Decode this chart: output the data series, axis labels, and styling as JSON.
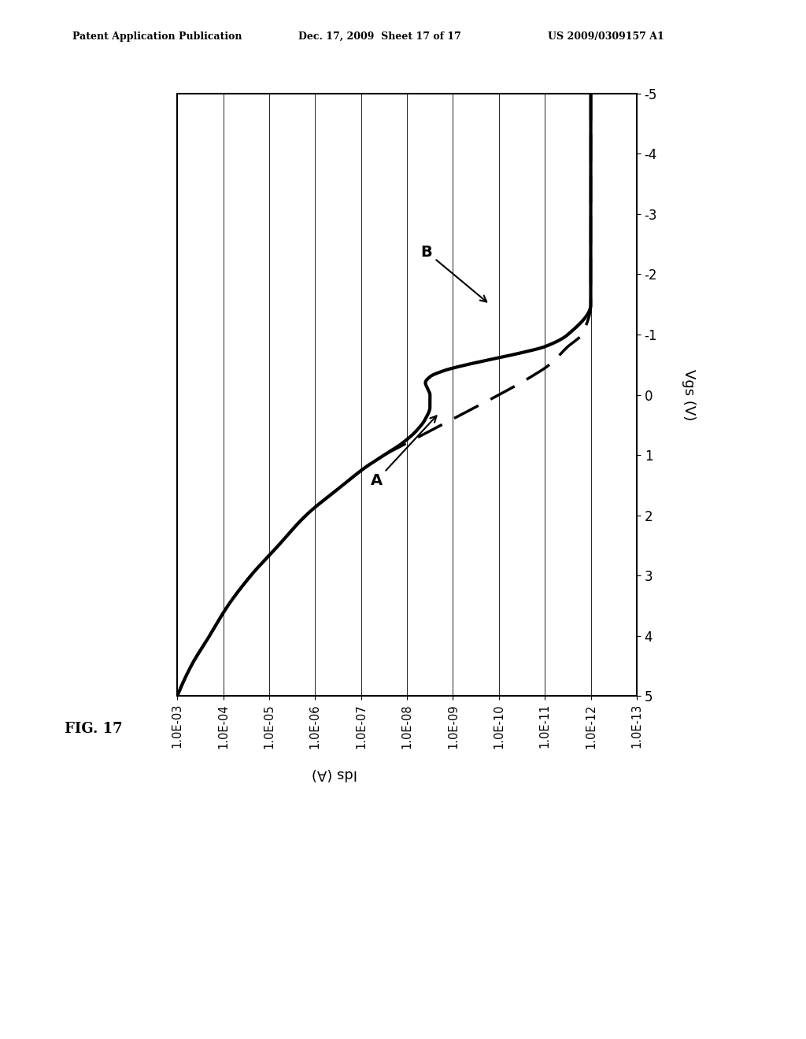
{
  "title": "",
  "fig_label": "FIG. 17",
  "header_left": "Patent Application Publication",
  "header_mid": "Dec. 17, 2009  Sheet 17 of 17",
  "header_right": "US 2009/0309157 A1",
  "xlabel": "Ids (A)",
  "ylabel": "Vgs (V)",
  "xtick_labels": [
    "1.0E-03",
    "1.0E-04",
    "1.0E-05",
    "1.0E-06",
    "1.0E-07",
    "1.0E-08",
    "1.0E-09",
    "1.0E-10",
    "1.0E-11",
    "1.0E-12",
    "1.0E-13"
  ],
  "yticks": [
    5,
    4,
    3,
    2,
    1,
    0,
    -1,
    -2,
    -3,
    -4,
    -5
  ],
  "ytick_labels": [
    "5",
    "4",
    "3",
    "2",
    "1",
    "0",
    "-1",
    "-2",
    "-3",
    "-4",
    "-5"
  ],
  "background_color": "#ffffff",
  "annotation_A": "A",
  "annotation_B": "B"
}
